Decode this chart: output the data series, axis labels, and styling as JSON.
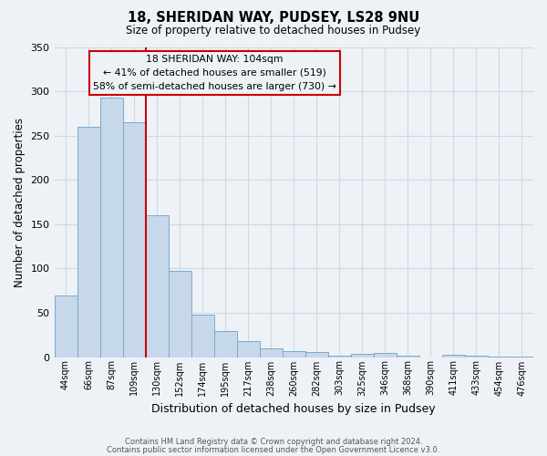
{
  "title1": "18, SHERIDAN WAY, PUDSEY, LS28 9NU",
  "title2": "Size of property relative to detached houses in Pudsey",
  "xlabel": "Distribution of detached houses by size in Pudsey",
  "ylabel": "Number of detached properties",
  "bar_labels": [
    "44sqm",
    "66sqm",
    "87sqm",
    "109sqm",
    "130sqm",
    "152sqm",
    "174sqm",
    "195sqm",
    "217sqm",
    "238sqm",
    "260sqm",
    "282sqm",
    "303sqm",
    "325sqm",
    "346sqm",
    "368sqm",
    "390sqm",
    "411sqm",
    "433sqm",
    "454sqm",
    "476sqm"
  ],
  "bar_heights": [
    70,
    260,
    293,
    265,
    160,
    97,
    48,
    29,
    18,
    10,
    7,
    6,
    2,
    4,
    5,
    2,
    0,
    3,
    2,
    1,
    1
  ],
  "bar_color": "#c8d8eb",
  "bar_edge_color": "#7aaac8",
  "vline_color": "#cc0000",
  "annotation_lines": [
    "18 SHERIDAN WAY: 104sqm",
    "← 41% of detached houses are smaller (519)",
    "58% of semi-detached houses are larger (730) →"
  ],
  "annotation_box_edge": "#cc0000",
  "ylim": [
    0,
    350
  ],
  "yticks": [
    0,
    50,
    100,
    150,
    200,
    250,
    300,
    350
  ],
  "footer1": "Contains HM Land Registry data © Crown copyright and database right 2024.",
  "footer2": "Contains public sector information licensed under the Open Government Licence v3.0.",
  "bg_color": "#eef2f7",
  "grid_color": "#d0d8e4"
}
